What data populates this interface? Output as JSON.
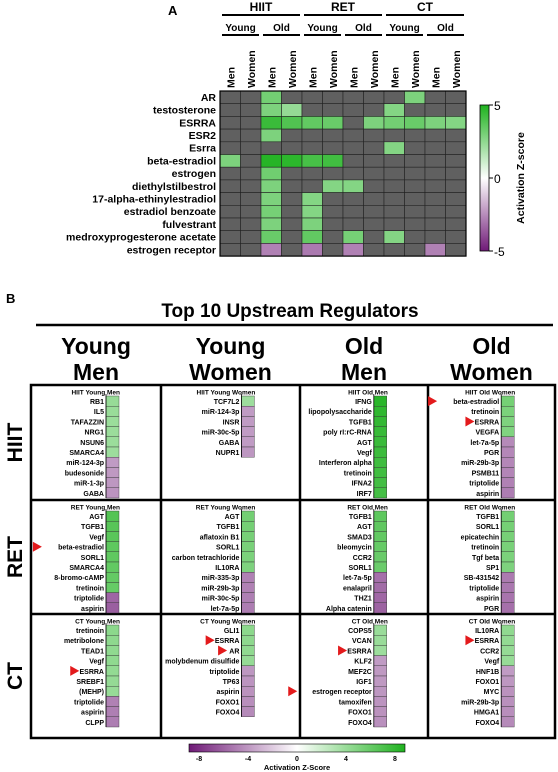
{
  "panel_a": {
    "panel_label": "A",
    "groups": [
      "HIIT",
      "RET",
      "CT"
    ],
    "age_labels": [
      "Young",
      "Old"
    ],
    "columns": [
      "Men",
      "Women",
      "Men",
      "Women",
      "Men",
      "Women",
      "Men",
      "Women",
      "Men",
      "Women",
      "Men",
      "Women"
    ],
    "column_group": [
      0,
      0,
      0,
      0,
      1,
      1,
      1,
      1,
      2,
      2,
      2,
      2
    ],
    "column_age": [
      0,
      0,
      1,
      1,
      0,
      0,
      1,
      1,
      0,
      0,
      1,
      1
    ],
    "rows": [
      "AR",
      "testosterone",
      "ESRRA",
      "ESR2",
      "Esrra",
      "beta-estradiol",
      "estrogen",
      "diethylstilbestrol",
      "17-alpha-ethinylestradiol",
      "estradiol benzoate",
      "fulvestrant",
      "medroxyprogesterone acetate",
      "estrogen receptor"
    ],
    "colorbar": {
      "label": "Activation Z-score",
      "ticks": [
        "5",
        "0",
        "-5"
      ],
      "max": 5,
      "min": -5
    }
  },
  "panel_b": {
    "panel_label": "B",
    "title": "Top 10 Upstream Regulators",
    "column_headers": [
      {
        "line1": "Young",
        "line2": "Men"
      },
      {
        "line1": "Young",
        "line2": "Women"
      },
      {
        "line1": "Old",
        "line2": "Men"
      },
      {
        "line1": "Old",
        "line2": "Women"
      }
    ],
    "row_headers": [
      "HIIT",
      "RET",
      "CT"
    ],
    "colorbar": {
      "label": "Activation Z-Score",
      "ticks": [
        "-8",
        "-4",
        "0",
        "4",
        "8"
      ],
      "min": -8,
      "max": 8
    }
  },
  "chart_data": [
    {
      "type": "heatmap",
      "title": "",
      "xlabel": "",
      "ylabel": "",
      "x_categories": [
        "HIIT Young Men",
        "HIIT Young Women",
        "HIIT Old Men",
        "HIIT Old Women",
        "RET Young Men",
        "RET Young Women",
        "RET Old Men",
        "RET Old Women",
        "CT Young Men",
        "CT Young Women",
        "CT Old Men",
        "CT Old Women"
      ],
      "y_categories": [
        "AR",
        "testosterone",
        "ESRRA",
        "ESR2",
        "Esrra",
        "beta-estradiol",
        "estrogen",
        "diethylstilbestrol",
        "17-alpha-ethinylestradiol",
        "estradiol benzoate",
        "fulvestrant",
        "medroxyprogesterone acetate",
        "estrogen receptor"
      ],
      "values": [
        [
          null,
          null,
          2.5,
          null,
          null,
          null,
          null,
          null,
          null,
          2.2,
          null,
          null
        ],
        [
          null,
          null,
          2.2,
          1.5,
          null,
          null,
          null,
          null,
          2.0,
          null,
          null,
          null
        ],
        [
          null,
          null,
          4.2,
          3.5,
          3.0,
          2.8,
          null,
          2.2,
          2.5,
          2.8,
          2.2,
          2.0
        ],
        [
          null,
          null,
          2.2,
          null,
          null,
          null,
          null,
          null,
          null,
          null,
          null,
          null
        ],
        [
          null,
          null,
          null,
          null,
          null,
          null,
          null,
          null,
          2.0,
          null,
          null,
          null
        ],
        [
          2.2,
          null,
          4.8,
          4.6,
          3.8,
          4.0,
          null,
          null,
          null,
          null,
          null,
          null
        ],
        [
          null,
          null,
          2.6,
          null,
          null,
          null,
          null,
          null,
          null,
          null,
          null,
          null
        ],
        [
          null,
          null,
          2.2,
          null,
          null,
          2.0,
          2.0,
          null,
          null,
          null,
          null,
          null
        ],
        [
          null,
          null,
          2.2,
          null,
          2.0,
          null,
          null,
          null,
          null,
          null,
          null,
          null
        ],
        [
          null,
          null,
          2.4,
          null,
          2.0,
          null,
          null,
          null,
          null,
          null,
          null,
          null
        ],
        [
          null,
          null,
          2.2,
          null,
          2.2,
          null,
          null,
          null,
          null,
          null,
          null,
          null
        ],
        [
          null,
          null,
          2.8,
          null,
          3.0,
          null,
          2.4,
          null,
          2.0,
          null,
          null,
          null
        ],
        [
          null,
          null,
          -2.0,
          null,
          -2.2,
          null,
          -2.0,
          null,
          null,
          null,
          -2.0,
          null
        ]
      ],
      "zlim": [
        -5,
        5
      ],
      "colorbar_label": "Activation Z-score"
    },
    {
      "type": "heatmap",
      "title": "Top 10 Upstream Regulators",
      "colorbar_label": "Activation Z-Score",
      "zlim": [
        -8,
        8
      ],
      "panels": [
        {
          "title": "HIIT Young Men",
          "labels": [
            "RB1",
            "IL5",
            "TAFAZZIN",
            "NRG1",
            "NSUN6",
            "SMARCA4",
            "miR-124-3p",
            "budesonide",
            "miR-1-3p",
            "GABA"
          ],
          "values": [
            2.3,
            2.2,
            2.1,
            2.1,
            2.1,
            2.0,
            -2.0,
            -2.1,
            -2.2,
            -2.3
          ],
          "marked": []
        },
        {
          "title": "HIIT Young Women",
          "labels": [
            "TCF7L2",
            "miR-124-3p",
            "INSR",
            "miR-30c-5p",
            "GABA",
            "NUPR1"
          ],
          "values": [
            2.0,
            -2.0,
            -2.0,
            -2.0,
            -2.0,
            -2.2
          ],
          "marked": []
        },
        {
          "title": "HIIT Old Men",
          "labels": [
            "IFNG",
            "lipopolysaccharide",
            "TGFB1",
            "poly rI:rC-RNA",
            "AGT",
            "Vegf",
            "Interferon alpha",
            "tretinoin",
            "IFNA2",
            "IRF7"
          ],
          "values": [
            7.5,
            7.2,
            7.0,
            6.8,
            6.7,
            6.6,
            6.5,
            6.4,
            6.3,
            6.2
          ],
          "marked": []
        },
        {
          "title": "HIIT Old Women",
          "labels": [
            "beta-estradiol",
            "tretinoin",
            "ESRRA",
            "VEGFA",
            "let-7a-5p",
            "PGR",
            "miR-29b-3p",
            "PSMB11",
            "triptolide",
            "aspirin"
          ],
          "values": [
            3.9,
            3.6,
            3.5,
            3.4,
            -2.8,
            -2.9,
            -2.9,
            -3.0,
            -3.2,
            -3.4
          ],
          "marked": [
            "beta-estradiol",
            "ESRRA"
          ]
        },
        {
          "title": "RET Young Men",
          "labels": [
            "AGT",
            "TGFB1",
            "Vegf",
            "beta-estradiol",
            "SORL1",
            "SMARCA4",
            "8-bromo-cAMP",
            "tretinoin",
            "triptolide",
            "aspirin"
          ],
          "values": [
            5.5,
            5.3,
            5.2,
            5.0,
            4.9,
            4.8,
            4.7,
            4.6,
            -4.5,
            -4.8
          ],
          "marked": [
            "beta-estradiol"
          ]
        },
        {
          "title": "RET Young Women",
          "labels": [
            "AGT",
            "TGFB1",
            "aflatoxin B1",
            "SORL1",
            "carbon tetrachloride",
            "IL10RA",
            "miR-335-3p",
            "miR-29b-3p",
            "miR-30c-5p",
            "let-7a-5p"
          ],
          "values": [
            4.0,
            3.9,
            3.8,
            3.7,
            3.6,
            3.5,
            -3.2,
            -3.2,
            -3.3,
            -3.4
          ],
          "marked": []
        },
        {
          "title": "RET Old Men",
          "labels": [
            "TGFB1",
            "AGT",
            "SMAD3",
            "bleomycin",
            "CCR2",
            "SORL1",
            "let-7a-5p",
            "enalapril",
            "THZ1",
            "Alpha catenin"
          ],
          "values": [
            5.0,
            4.9,
            4.8,
            4.6,
            4.5,
            4.4,
            -4.0,
            -4.2,
            -4.4,
            -4.6
          ],
          "marked": []
        },
        {
          "title": "RET Old Women",
          "labels": [
            "TGFB1",
            "SORL1",
            "epicatechin",
            "tretinoin",
            "Tgf beta",
            "SP1",
            "SB-431542",
            "triptolide",
            "aspirin",
            "PGR"
          ],
          "values": [
            4.0,
            3.9,
            3.8,
            3.7,
            3.6,
            3.5,
            -3.5,
            -3.6,
            -3.8,
            -4.0
          ],
          "marked": []
        },
        {
          "title": "CT Young Men",
          "labels": [
            "tretinoin",
            "metribolone",
            "TEAD1",
            "Vegf",
            "ESRRA",
            "SREBF1",
            "(MEHP)",
            "triptolide",
            "aspirin",
            "CLPP"
          ],
          "values": [
            2.8,
            2.7,
            2.6,
            2.6,
            2.5,
            2.4,
            2.3,
            -3.2,
            -3.3,
            -3.4
          ],
          "marked": [
            "ESRRA"
          ]
        },
        {
          "title": "CT Young Women",
          "labels": [
            "GLI1",
            "ESRRA",
            "AR",
            "molybdenum disulfide",
            "triptolide",
            "TP63",
            "aspirin",
            "FOXO1",
            "FOXO4"
          ],
          "values": [
            2.8,
            2.7,
            2.6,
            2.4,
            -2.2,
            -2.3,
            -2.4,
            -2.6,
            -2.8
          ],
          "marked": [
            "ESRRA",
            "AR"
          ]
        },
        {
          "title": "CT Old Men",
          "labels": [
            "COPS5",
            "VCAN",
            "ESRRA",
            "KLF2",
            "MEF2C",
            "IGF1",
            "estrogen receptor",
            "tamoxifen",
            "FOXO1",
            "FOXO4"
          ],
          "values": [
            2.2,
            2.2,
            2.0,
            -2.0,
            -2.1,
            -2.1,
            -2.2,
            -2.3,
            -2.4,
            -2.5
          ],
          "marked": [
            "ESRRA",
            "estrogen receptor"
          ]
        },
        {
          "title": "CT Old Women",
          "labels": [
            "IL10RA",
            "ESRRA",
            "CCR2",
            "Vegf",
            "HNF1B",
            "FOXO1",
            "MYC",
            "miR-29b-3p",
            "HMGA1",
            "FOXO4"
          ],
          "values": [
            2.6,
            2.5,
            2.4,
            2.3,
            -2.0,
            -2.2,
            -2.4,
            -2.5,
            -2.6,
            -2.8
          ],
          "marked": [
            "ESRRA"
          ]
        }
      ]
    }
  ]
}
